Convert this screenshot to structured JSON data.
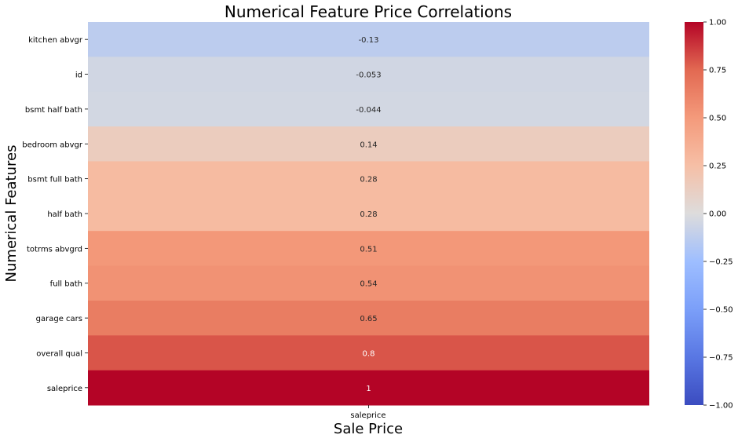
{
  "chart_data": {
    "type": "heatmap",
    "title": "Numerical Feature Price Correlations",
    "xlabel": "Sale Price",
    "ylabel": "Numerical Features",
    "columns": [
      "saleprice"
    ],
    "rows": [
      {
        "label": "kitchen abvgr",
        "value": -0.13,
        "text": "-0.13"
      },
      {
        "label": "id",
        "value": -0.053,
        "text": "-0.053"
      },
      {
        "label": "bsmt half bath",
        "value": -0.044,
        "text": "-0.044"
      },
      {
        "label": "bedroom abvgr",
        "value": 0.14,
        "text": "0.14"
      },
      {
        "label": "bsmt full bath",
        "value": 0.28,
        "text": "0.28"
      },
      {
        "label": "half bath",
        "value": 0.28,
        "text": "0.28"
      },
      {
        "label": "totrms abvgrd",
        "value": 0.51,
        "text": "0.51"
      },
      {
        "label": "full bath",
        "value": 0.54,
        "text": "0.54"
      },
      {
        "label": "garage cars",
        "value": 0.65,
        "text": "0.65"
      },
      {
        "label": "overall qual",
        "value": 0.8,
        "text": "0.8"
      },
      {
        "label": "saleprice",
        "value": 1,
        "text": "1"
      }
    ],
    "colormap": "coolwarm",
    "vmin": -1,
    "vmax": 1,
    "colorbar_ticks": [
      "-1.00",
      "-0.75",
      "-0.50",
      "-0.25",
      "0.00",
      "0.25",
      "0.50",
      "0.75",
      "1.00"
    ]
  }
}
